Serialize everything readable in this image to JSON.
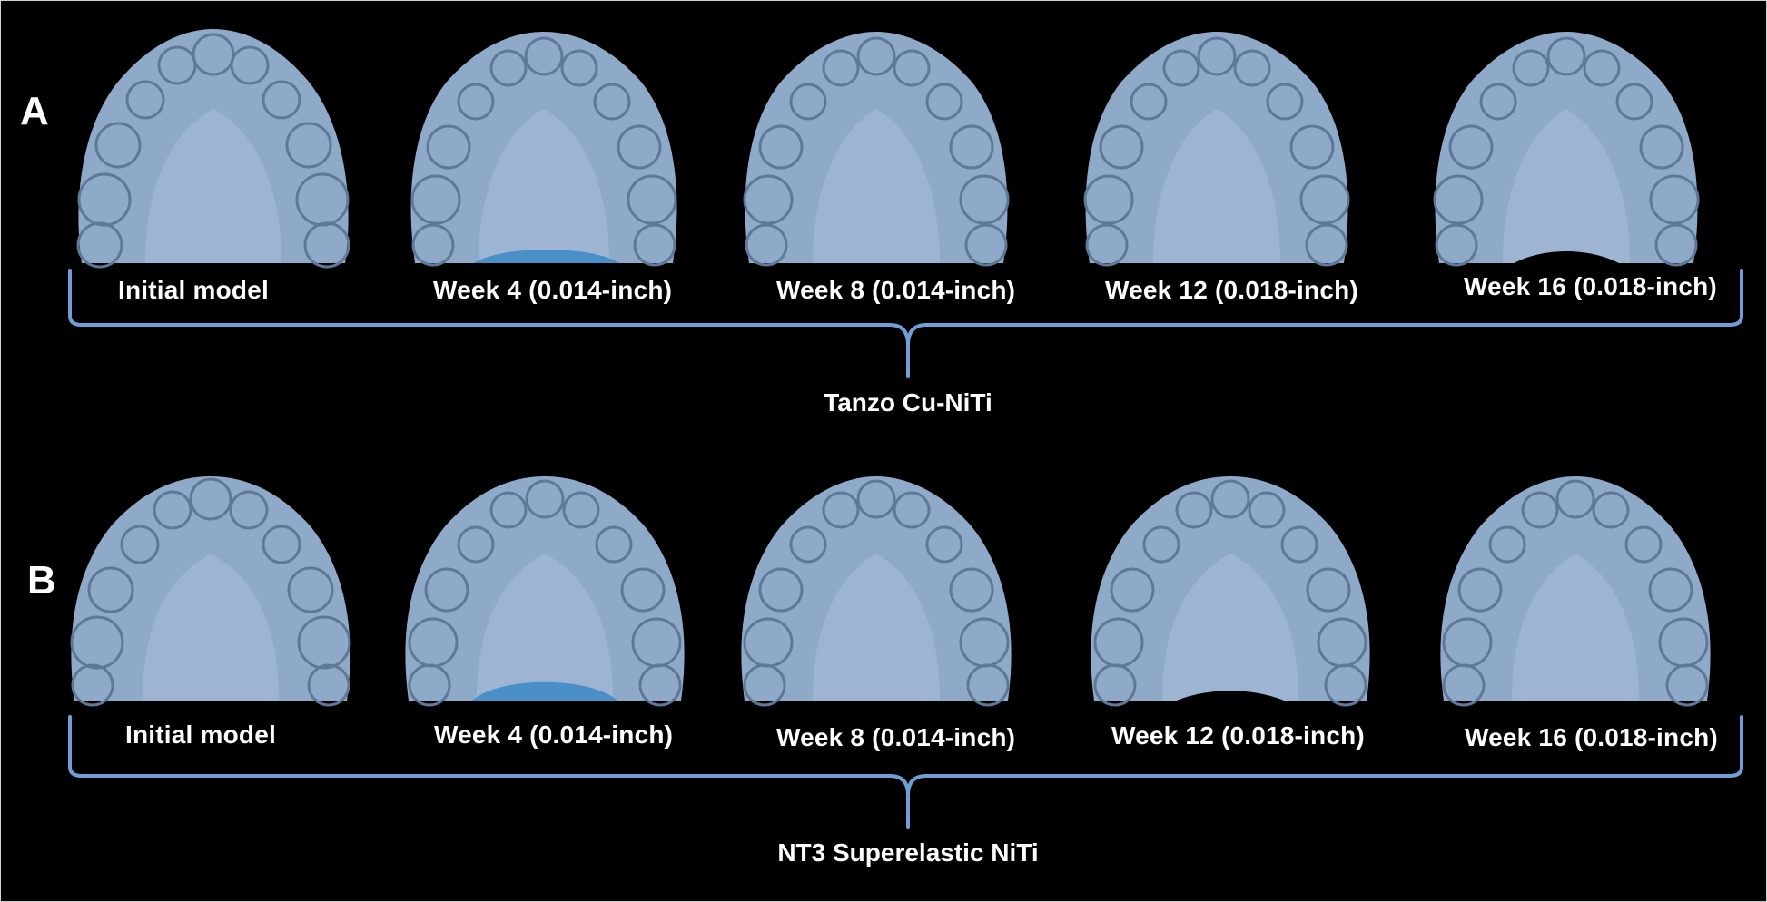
{
  "panels": [
    {
      "letter": "A",
      "group_label": "Tanzo Cu-NiTi",
      "captions": [
        "Initial model",
        "Week 4 (0.014-inch)",
        "Week 8 (0.014-inch)",
        "Week 12 (0.018-inch)",
        "Week 16 (0.018-inch)"
      ]
    },
    {
      "letter": "B",
      "group_label": "NT3 Superelastic NiTi",
      "captions": [
        "Initial model",
        "Week 4 (0.014-inch)",
        "Week 8 (0.014-inch)",
        "Week 12 (0.018-inch)",
        "Week 16 (0.018-inch)"
      ]
    }
  ],
  "colors": {
    "model": "#8fa9c8",
    "brace": "#6f9fd6",
    "background": "#000000"
  }
}
